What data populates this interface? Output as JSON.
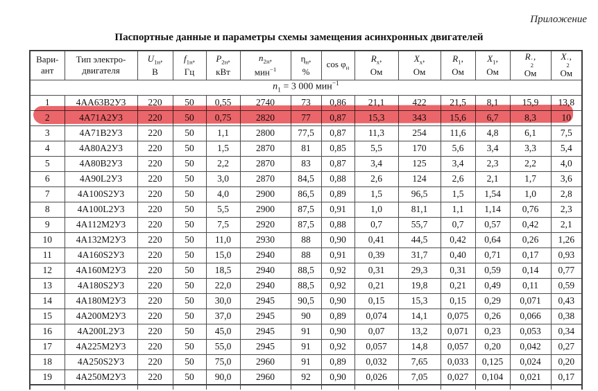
{
  "annotation": "Приложение",
  "title": "Паспортные данные и параметры схемы замещения асинхронных двигателей",
  "table": {
    "col_headers": [
      {
        "l1": "Вари-",
        "l2": "ант"
      },
      {
        "l1": "Тип электро-",
        "l2": "двигателя"
      },
      {
        "sym": "U",
        "sub": "1н",
        "comma": ",",
        "unit": "В"
      },
      {
        "sym": "f",
        "sub": "1н",
        "comma": ",",
        "unit": "Гц"
      },
      {
        "sym": "P",
        "sub": "2н",
        "comma": ",",
        "unit": "кВт"
      },
      {
        "sym": "n",
        "sub": "2н",
        "comma": ",",
        "unit": "мин",
        "unit_sup": "−1"
      },
      {
        "sym": "η",
        "sub": "н",
        "comma": ",",
        "unit": "%"
      },
      {
        "pre": "cos φ",
        "sub": "н"
      },
      {
        "sym": "R",
        "sub": "х",
        "comma": ",",
        "unit": "Ом"
      },
      {
        "sym": "X",
        "sub": "х",
        "comma": ",",
        "unit": "Ом"
      },
      {
        "sym": "R",
        "sub": "1",
        "comma": ",",
        "unit": "Ом"
      },
      {
        "sym": "X",
        "sub": "1",
        "comma": ",",
        "unit": "Ом"
      },
      {
        "sym": "R",
        "prime": "′",
        "sub": "2",
        "comma": ",",
        "unit": "Ом"
      },
      {
        "sym": "X",
        "prime": "′",
        "sub": "2",
        "comma": ",",
        "unit": "Ом"
      }
    ],
    "group_row": {
      "sym": "n",
      "sub": "1",
      "mid": " = 3 000 ",
      "unit": "мин",
      "sup": "−1"
    },
    "rows": [
      [
        "1",
        "4АА63В2У3",
        "220",
        "50",
        "0,55",
        "2740",
        "73",
        "0,86",
        "21,1",
        "422",
        "21,5",
        "8,1",
        "15,9",
        "13,8"
      ],
      [
        "2",
        "4А71А2У3",
        "220",
        "50",
        "0,75",
        "2820",
        "77",
        "0,87",
        "15,3",
        "343",
        "15,6",
        "6,7",
        "8,3",
        "10"
      ],
      [
        "3",
        "4А71В2У3",
        "220",
        "50",
        "1,1",
        "2800",
        "77,5",
        "0,87",
        "11,3",
        "254",
        "11,6",
        "4,8",
        "6,1",
        "7,5"
      ],
      [
        "4",
        "4А80А2У3",
        "220",
        "50",
        "1,5",
        "2870",
        "81",
        "0,85",
        "5,5",
        "170",
        "5,6",
        "3,4",
        "3,3",
        "5,4"
      ],
      [
        "5",
        "4А80В2У3",
        "220",
        "50",
        "2,2",
        "2870",
        "83",
        "0,87",
        "3,4",
        "125",
        "3,4",
        "2,3",
        "2,2",
        "4,0"
      ],
      [
        "6",
        "4А90L2У3",
        "220",
        "50",
        "3,0",
        "2870",
        "84,5",
        "0,88",
        "2,6",
        "124",
        "2,6",
        "2,1",
        "1,7",
        "3,6"
      ],
      [
        "7",
        "4А100S2У3",
        "220",
        "50",
        "4,0",
        "2900",
        "86,5",
        "0,89",
        "1,5",
        "96,5",
        "1,5",
        "1,54",
        "1,0",
        "2,8"
      ],
      [
        "8",
        "4А100L2У3",
        "220",
        "50",
        "5,5",
        "2900",
        "87,5",
        "0,91",
        "1,0",
        "81,1",
        "1,1",
        "1,14",
        "0,76",
        "2,3"
      ],
      [
        "9",
        "4А112М2У3",
        "220",
        "50",
        "7,5",
        "2920",
        "87,5",
        "0,88",
        "0,7",
        "55,7",
        "0,7",
        "0,57",
        "0,42",
        "2,1"
      ],
      [
        "10",
        "4А132М2У3",
        "220",
        "50",
        "11,0",
        "2930",
        "88",
        "0,90",
        "0,41",
        "44,5",
        "0,42",
        "0,64",
        "0,26",
        "1,26"
      ],
      [
        "11",
        "4А160S2У3",
        "220",
        "50",
        "15,0",
        "2940",
        "88",
        "0,91",
        "0,39",
        "31,7",
        "0,40",
        "0,71",
        "0,17",
        "0,93"
      ],
      [
        "12",
        "4А160М2У3",
        "220",
        "50",
        "18,5",
        "2940",
        "88,5",
        "0,92",
        "0,31",
        "29,3",
        "0,31",
        "0,59",
        "0,14",
        "0,77"
      ],
      [
        "13",
        "4А180S2У3",
        "220",
        "50",
        "22,0",
        "2940",
        "88,5",
        "0,92",
        "0,21",
        "19,8",
        "0,21",
        "0,49",
        "0,11",
        "0,59"
      ],
      [
        "14",
        "4А180М2У3",
        "220",
        "50",
        "30,0",
        "2945",
        "90,5",
        "0,90",
        "0,15",
        "15,3",
        "0,15",
        "0,29",
        "0,071",
        "0,43"
      ],
      [
        "15",
        "4А200М2У3",
        "220",
        "50",
        "37,0",
        "2945",
        "90",
        "0,89",
        "0,074",
        "14,1",
        "0,075",
        "0,26",
        "0,066",
        "0,38"
      ],
      [
        "16",
        "4А200L2У3",
        "220",
        "50",
        "45,0",
        "2945",
        "91",
        "0,90",
        "0,07",
        "13,2",
        "0,071",
        "0,23",
        "0,053",
        "0,34"
      ],
      [
        "17",
        "4А225М2У3",
        "220",
        "50",
        "55,0",
        "2945",
        "91",
        "0,92",
        "0,057",
        "14,8",
        "0,057",
        "0,20",
        "0,042",
        "0,27"
      ],
      [
        "18",
        "4А250S2У3",
        "220",
        "50",
        "75,0",
        "2960",
        "91",
        "0,89",
        "0,032",
        "7,65",
        "0,033",
        "0,125",
        "0,024",
        "0,20"
      ],
      [
        "19",
        "4А250М2У3",
        "220",
        "50",
        "90,0",
        "2960",
        "92",
        "0,90",
        "0,026",
        "7,05",
        "0,027",
        "0,104",
        "0,021",
        "0,17"
      ]
    ],
    "highlight": {
      "variant": "2",
      "color": "#ea666a"
    }
  }
}
